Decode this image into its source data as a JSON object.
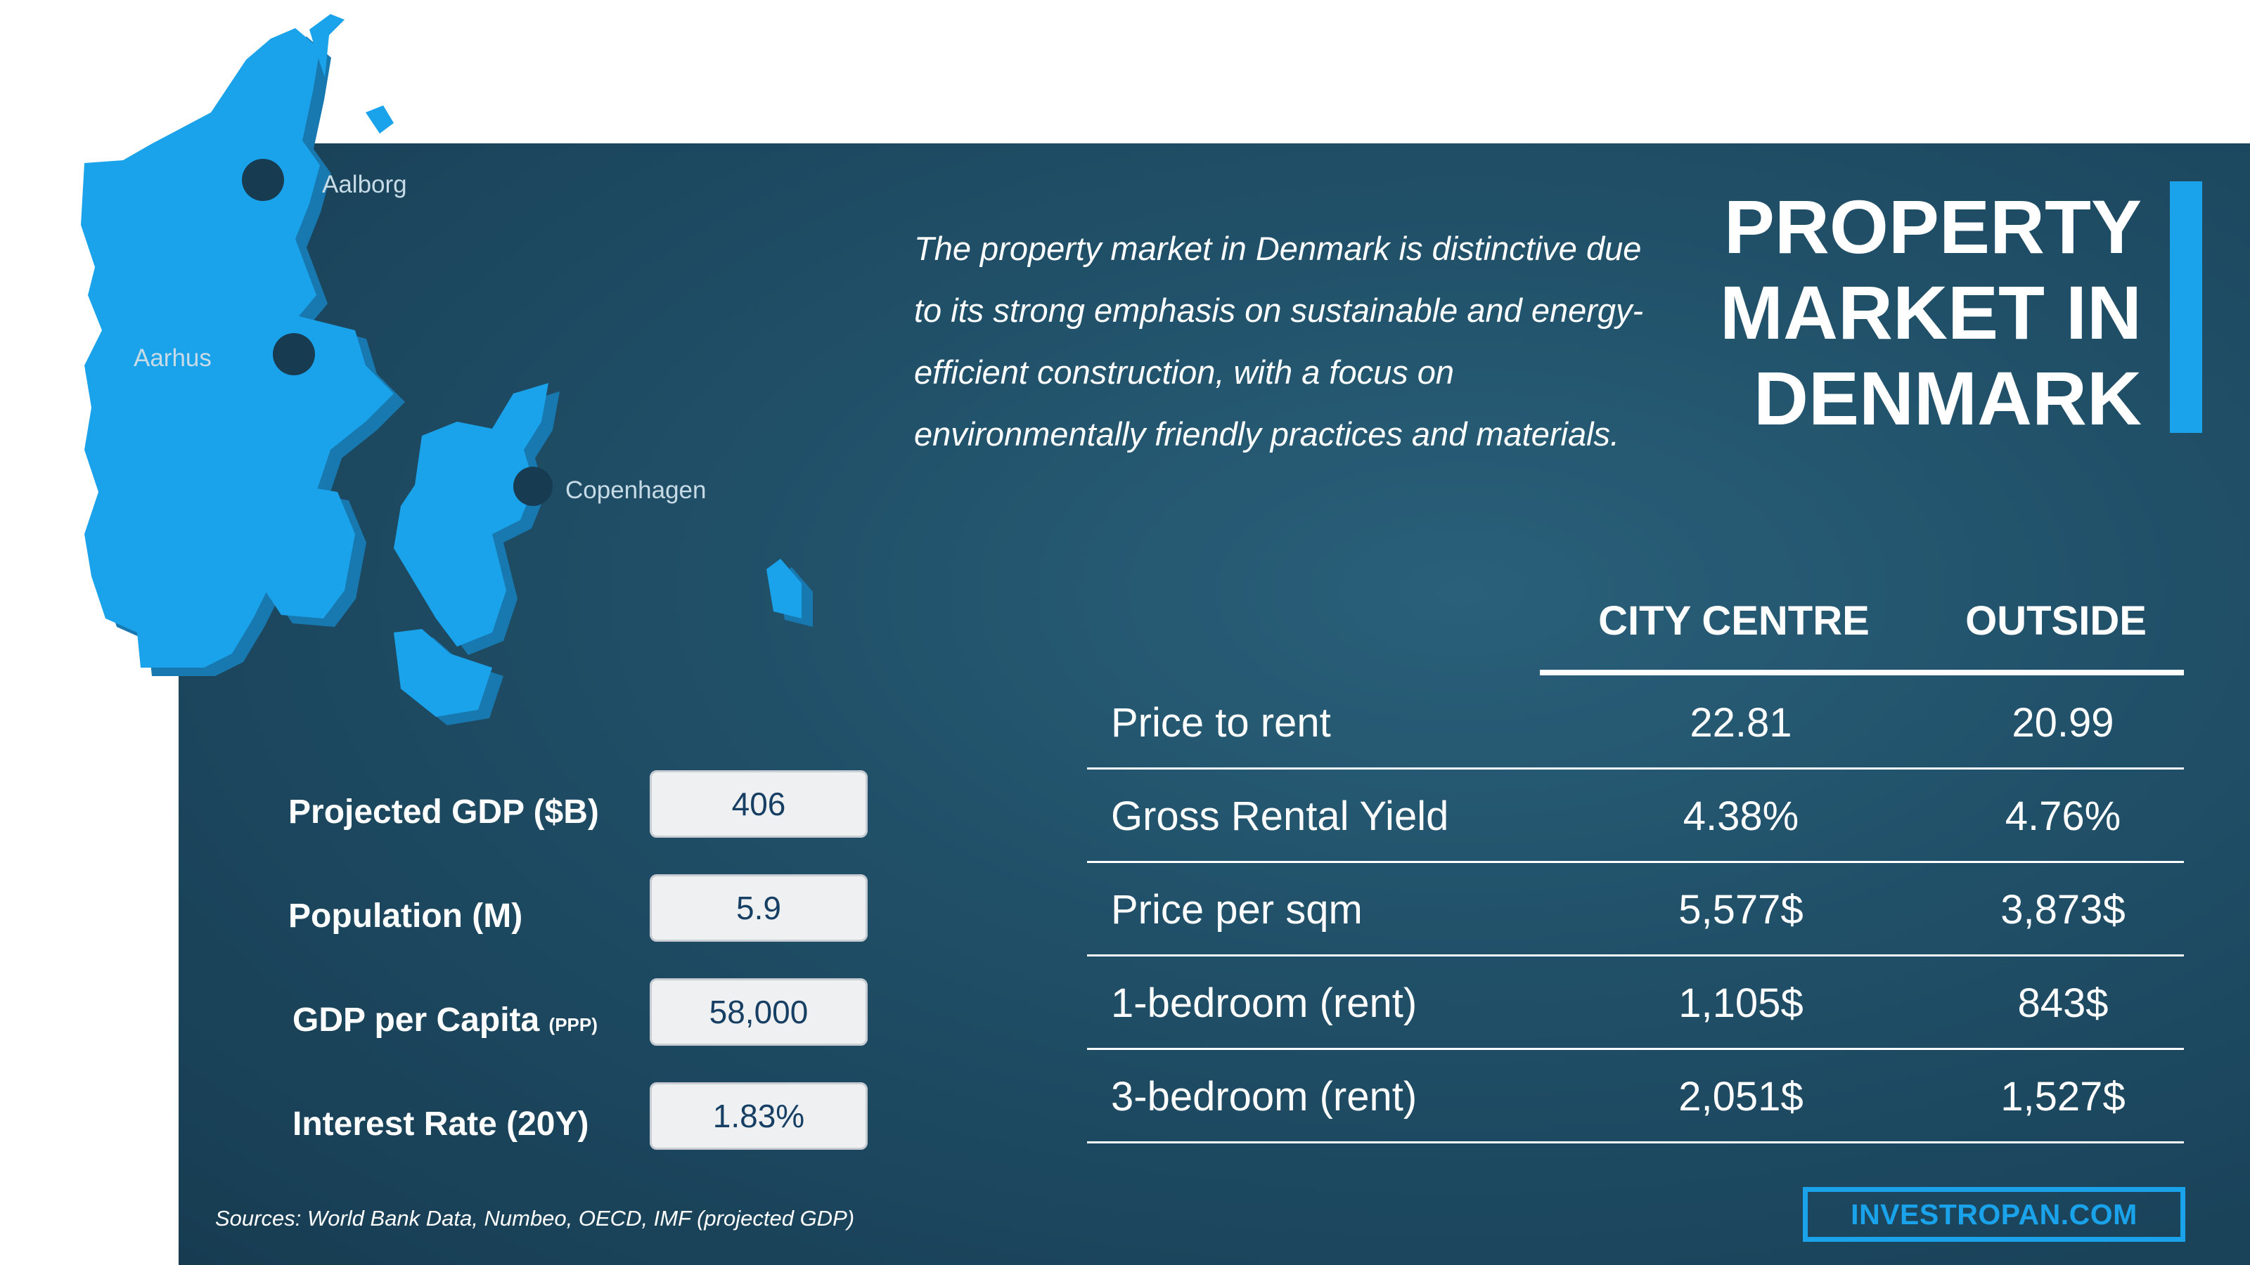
{
  "map": {
    "cities": [
      {
        "name": "Aalborg"
      },
      {
        "name": "Aarhus"
      },
      {
        "name": "Copenhagen"
      }
    ],
    "land_color": "#1aa3ea",
    "shadow_color": "#1878b0",
    "marker_color": "#173c52"
  },
  "title": {
    "line1": "PROPERTY",
    "line2": "MARKET IN",
    "line3": "DENMARK",
    "accent_color": "#1aa3ea"
  },
  "intro": {
    "text": "The property market in Denmark is distinctive due to its strong emphasis on sustainable and energy-efficient construction, with a focus on environmentally friendly practices and materials."
  },
  "stats": [
    {
      "label": "Projected GDP ($B)",
      "note": "",
      "value": "406"
    },
    {
      "label": "Population (M)",
      "note": "",
      "value": "5.9"
    },
    {
      "label": "GDP per Capita ",
      "note": "(PPP)",
      "value": "58,000"
    },
    {
      "label": "Interest Rate (20Y)",
      "note": "",
      "value": "1.83%"
    }
  ],
  "table": {
    "headers": [
      "CITY CENTRE",
      "OUTSIDE"
    ],
    "rows": [
      {
        "label": "Price to rent",
        "city": "22.81",
        "outside": "20.99"
      },
      {
        "label": "Gross Rental Yield",
        "city": "4.38%",
        "outside": "4.76%"
      },
      {
        "label": "Price per sqm",
        "city": "5,577$",
        "outside": "3,873$"
      },
      {
        "label": "1-bedroom (rent)",
        "city": "1,105$",
        "outside": "843$"
      },
      {
        "label": "3-bedroom (rent)",
        "city": "2,051$",
        "outside": "1,527$"
      }
    ]
  },
  "footer": {
    "sources": "Sources:  World Bank Data, Numbeo, OECD, IMF (projected GDP)",
    "brand": "INVESTROPAN.COM"
  },
  "colors": {
    "panel": "#1f4e66",
    "accent": "#1aa3ea",
    "box_text": "#173f63"
  }
}
